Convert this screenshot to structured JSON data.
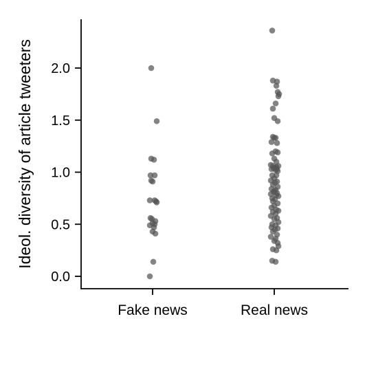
{
  "chart_data": {
    "type": "scatter",
    "ylabel": "Ideol. diversity of article tweeters",
    "categories": [
      "Fake news",
      "Real news"
    ],
    "ylim": [
      -0.12,
      2.45
    ],
    "yticks": [
      "0.0",
      "0.5",
      "1.0",
      "1.5",
      "2.0"
    ],
    "grid": false,
    "point_color": "#555555",
    "series": [
      {
        "category": "Fake news",
        "values": [
          2.0,
          1.49,
          1.13,
          1.12,
          0.97,
          0.97,
          0.92,
          0.91,
          0.73,
          0.73,
          0.72,
          0.71,
          0.56,
          0.55,
          0.53,
          0.51,
          0.5,
          0.49,
          0.47,
          0.43,
          0.41,
          0.14,
          0.0
        ],
        "jitter": [
          -0.02,
          0.06,
          -0.02,
          0.02,
          -0.03,
          0.03,
          -0.02,
          0.0,
          -0.04,
          0.03,
          0.05,
          0.06,
          -0.03,
          -0.01,
          0.04,
          0.0,
          0.03,
          -0.04,
          0.02,
          0.0,
          0.04,
          0.01,
          -0.04
        ]
      },
      {
        "category": "Real news",
        "values": [
          2.36,
          1.88,
          1.87,
          1.83,
          1.77,
          1.75,
          1.73,
          1.66,
          1.61,
          1.52,
          1.49,
          1.34,
          1.33,
          1.33,
          1.29,
          1.28,
          1.2,
          1.19,
          1.18,
          1.13,
          1.1,
          1.07,
          1.06,
          1.06,
          1.05,
          1.04,
          1.04,
          1.03,
          1.03,
          1.02,
          1.01,
          0.97,
          0.97,
          0.94,
          0.92,
          0.91,
          0.9,
          0.88,
          0.86,
          0.84,
          0.83,
          0.82,
          0.81,
          0.8,
          0.79,
          0.78,
          0.77,
          0.75,
          0.74,
          0.72,
          0.7,
          0.68,
          0.66,
          0.64,
          0.63,
          0.62,
          0.6,
          0.58,
          0.56,
          0.55,
          0.52,
          0.5,
          0.49,
          0.47,
          0.46,
          0.45,
          0.43,
          0.4,
          0.38,
          0.36,
          0.34,
          0.32,
          0.29,
          0.26,
          0.25,
          0.15,
          0.14
        ],
        "jitter": [
          -0.03,
          -0.02,
          0.04,
          0.03,
          0.05,
          0.07,
          0.06,
          0.02,
          -0.02,
          0.0,
          0.05,
          -0.02,
          0.02,
          0.0,
          -0.04,
          0.04,
          0.02,
          0.05,
          -0.03,
          0.0,
          0.03,
          -0.05,
          0.06,
          -0.02,
          0.03,
          -0.01,
          0.01,
          0.04,
          -0.04,
          0.02,
          0.05,
          -0.03,
          0.03,
          0.0,
          -0.05,
          0.04,
          0.01,
          -0.02,
          0.05,
          -0.04,
          0.02,
          0.0,
          -0.01,
          0.04,
          -0.05,
          0.03,
          0.06,
          -0.03,
          0.01,
          -0.02,
          0.05,
          0.0,
          -0.04,
          0.03,
          0.06,
          -0.02,
          0.02,
          -0.05,
          0.04,
          0.0,
          0.06,
          -0.03,
          0.02,
          -0.04,
          0.05,
          0.01,
          -0.02,
          0.04,
          -0.05,
          0.02,
          0.0,
          0.05,
          0.06,
          -0.02,
          0.03,
          -0.03,
          0.02
        ]
      }
    ]
  }
}
